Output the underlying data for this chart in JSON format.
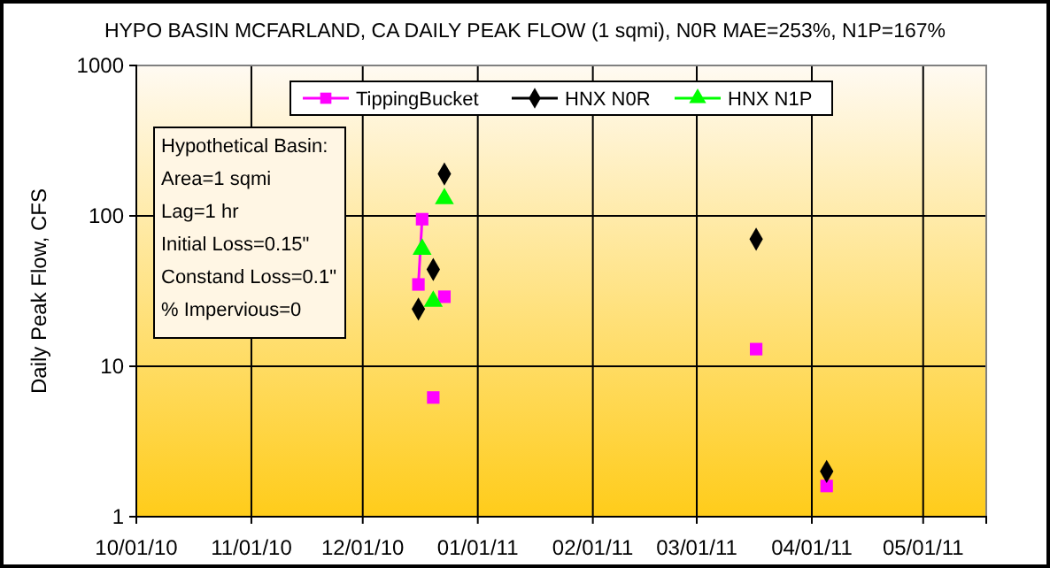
{
  "chart_data": {
    "type": "line",
    "title": "HYPO BASIN MCFARLAND, CA  DAILY PEAK FLOW (1 sqmi), N0R MAE=253%, N1P=167%",
    "ylabel": "Daily Peak Flow, CFS",
    "annotations": [
      "Hypothetical Basin:",
      "Area=1 sqmi",
      "Lag=1 hr",
      "Initial Loss=0.15\"",
      "Constand Loss=0.1\"",
      "% Impervious=0"
    ],
    "series": [
      {
        "name": "TippingBucket",
        "color": "#ff00ff",
        "marker": "square",
        "x": [
          "2010-12-16",
          "2010-12-17",
          "2010-12-18",
          "2010-12-20",
          "2010-12-21",
          "2010-12-23",
          "2010-12-24",
          "2011-03-17",
          "2011-03-18",
          "2011-04-05"
        ],
        "values": [
          35,
          95,
          null,
          6.2,
          null,
          29,
          null,
          13,
          null,
          1.6
        ]
      },
      {
        "name": "HNX N0R",
        "color": "#000000",
        "marker": "diamond",
        "x": [
          "2010-12-16",
          "2010-12-17",
          "2010-12-20",
          "2010-12-21",
          "2010-12-23",
          "2010-12-24",
          "2011-03-17",
          "2011-03-18",
          "2011-04-05"
        ],
        "values": [
          24,
          null,
          44,
          null,
          190,
          null,
          70,
          null,
          2.0
        ]
      },
      {
        "name": "HNX N1P",
        "color": "#00ff00",
        "marker": "triangle",
        "x": [
          "2010-12-17",
          "2010-12-18",
          "2010-12-20",
          "2010-12-21",
          "2010-12-23"
        ],
        "values": [
          60,
          null,
          27,
          null,
          130
        ]
      }
    ],
    "xlim": [
      "2010-10-01",
      "2011-05-18"
    ],
    "xticks": [
      {
        "value": "2010-10-01",
        "label": "10/01/10"
      },
      {
        "value": "2010-11-01",
        "label": "11/01/10"
      },
      {
        "value": "2010-12-01",
        "label": "12/01/10"
      },
      {
        "value": "2011-01-01",
        "label": "01/01/11"
      },
      {
        "value": "2011-02-01",
        "label": "02/01/11"
      },
      {
        "value": "2011-03-01",
        "label": "03/01/11"
      },
      {
        "value": "2011-04-01",
        "label": "04/01/11"
      },
      {
        "value": "2011-05-01",
        "label": "05/01/11"
      }
    ],
    "ylim": [
      1,
      1000
    ],
    "yticks": [
      1,
      10,
      100,
      1000
    ],
    "log": true,
    "grid": true,
    "legend": "top"
  }
}
